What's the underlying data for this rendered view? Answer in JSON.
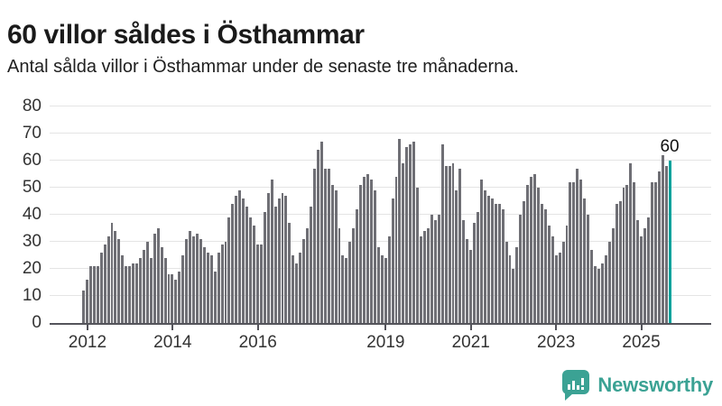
{
  "header": {
    "title": "60 villor såldes i Östhammar",
    "subtitle": "Antal sålda villor i Östhammar under de senaste tre månaderna."
  },
  "chart_data": {
    "type": "bar",
    "title": "60 villor såldes i Östhammar",
    "subtitle": "Antal sålda villor i Östhammar under de senaste tre månaderna.",
    "ylim": [
      0,
      80
    ],
    "y_ticks": [
      0,
      10,
      20,
      30,
      40,
      50,
      60,
      70,
      80
    ],
    "grid": true,
    "legend": false,
    "x_tick_years": [
      {
        "label": "2012",
        "index": 1
      },
      {
        "label": "2014",
        "index": 25
      },
      {
        "label": "2016",
        "index": 49
      },
      {
        "label": "2019",
        "index": 85
      },
      {
        "label": "2021",
        "index": 109
      },
      {
        "label": "2023",
        "index": 133
      },
      {
        "label": "2025",
        "index": 157
      }
    ],
    "values": [
      12,
      16,
      21,
      21,
      21,
      26,
      29,
      32,
      37,
      34,
      31,
      25,
      21,
      21,
      22,
      22,
      24,
      27,
      30,
      24,
      33,
      35,
      28,
      24,
      18,
      18,
      16,
      19,
      25,
      31,
      34,
      32,
      33,
      31,
      28,
      26,
      25,
      19,
      26,
      29,
      30,
      39,
      44,
      47,
      49,
      46,
      43,
      39,
      36,
      29,
      29,
      41,
      48,
      53,
      43,
      46,
      48,
      47,
      37,
      25,
      22,
      26,
      31,
      35,
      43,
      57,
      64,
      67,
      57,
      57,
      51,
      49,
      35,
      25,
      24,
      30,
      35,
      42,
      51,
      54,
      55,
      53,
      49,
      28,
      25,
      24,
      32,
      46,
      54,
      68,
      59,
      65,
      66,
      67,
      50,
      32,
      34,
      35,
      40,
      38,
      40,
      66,
      58,
      58,
      59,
      49,
      57,
      38,
      31,
      27,
      37,
      41,
      53,
      49,
      47,
      46,
      44,
      44,
      42,
      30,
      25,
      20,
      28,
      40,
      45,
      51,
      54,
      55,
      50,
      44,
      42,
      36,
      32,
      25,
      26,
      30,
      36,
      52,
      52,
      57,
      53,
      46,
      40,
      27,
      21,
      20,
      22,
      25,
      30,
      35,
      44,
      45,
      50,
      51,
      59,
      52,
      38,
      32,
      35,
      39,
      52,
      52,
      56,
      62,
      58,
      60
    ],
    "highlight_last": true,
    "last_value_label": "60",
    "bar_color": "#6f6f75",
    "highlight_color": "#00a29c"
  },
  "footer": {
    "brand": "Newsworthy"
  },
  "colors": {
    "title_text": "#1a1a1a",
    "axis_text": "#333333",
    "gridline": "#e4e4e4",
    "axis_line": "#54545b",
    "brand_teal": "#3ba294"
  }
}
